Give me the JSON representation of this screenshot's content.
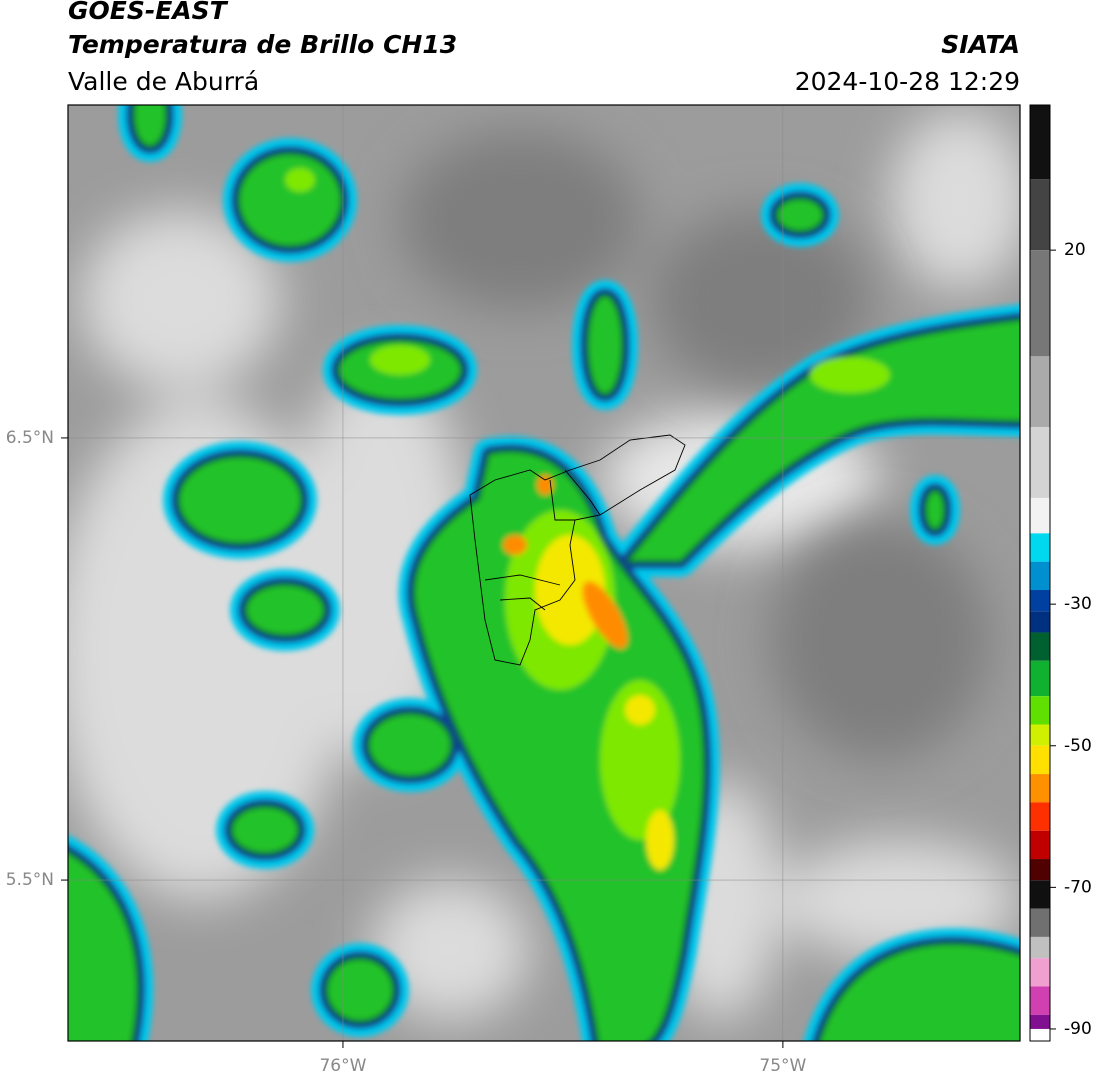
{
  "header": {
    "title": "GOES-EAST",
    "subtitle": "Temperatura de Brillo CH13",
    "region": "Valle de Aburrá",
    "source": "SIATA",
    "datetime": "2024-10-28 12:29"
  },
  "map": {
    "xlim": [
      -76.625,
      -74.461
    ],
    "ylim": [
      5.136,
      7.253
    ],
    "xticks": [
      {
        "value": -76,
        "label": "76°W"
      },
      {
        "value": -75,
        "label": "75°W"
      }
    ],
    "yticks": [
      {
        "value": 6.5,
        "label": "6.5°N"
      },
      {
        "value": 5.5,
        "label": "5.5°N"
      }
    ],
    "grid": true
  },
  "colorbar": {
    "lim": [
      -91.7,
      40.5
    ],
    "ticks": [
      20,
      -30,
      -50,
      -70,
      -90
    ],
    "colormap": [
      {
        "value": 40.5,
        "color": "#111111"
      },
      {
        "value": 30,
        "color": "#444444"
      },
      {
        "value": 20,
        "color": "#777777"
      },
      {
        "value": 5,
        "color": "#aaaaaa"
      },
      {
        "value": -5,
        "color": "#d4d4d4"
      },
      {
        "value": -15,
        "color": "#f2f2f2"
      },
      {
        "value": -20,
        "color": "#00d8f0"
      },
      {
        "value": -24,
        "color": "#0090d0"
      },
      {
        "value": -28,
        "color": "#0040a0"
      },
      {
        "value": -31,
        "color": "#003080"
      },
      {
        "value": -34,
        "color": "#006030"
      },
      {
        "value": -38,
        "color": "#10b030"
      },
      {
        "value": -43,
        "color": "#60e000"
      },
      {
        "value": -47,
        "color": "#d0f000"
      },
      {
        "value": -50,
        "color": "#ffe000"
      },
      {
        "value": -54,
        "color": "#ff9000"
      },
      {
        "value": -58,
        "color": "#ff3000"
      },
      {
        "value": -62,
        "color": "#c00000"
      },
      {
        "value": -66,
        "color": "#500000"
      },
      {
        "value": -69,
        "color": "#101010"
      },
      {
        "value": -73,
        "color": "#707070"
      },
      {
        "value": -77,
        "color": "#c0c0c0"
      },
      {
        "value": -80,
        "color": "#f0a0d0"
      },
      {
        "value": -84,
        "color": "#d040b0"
      },
      {
        "value": -88,
        "color": "#801090"
      },
      {
        "value": -90,
        "color": "#ffffff"
      }
    ]
  }
}
